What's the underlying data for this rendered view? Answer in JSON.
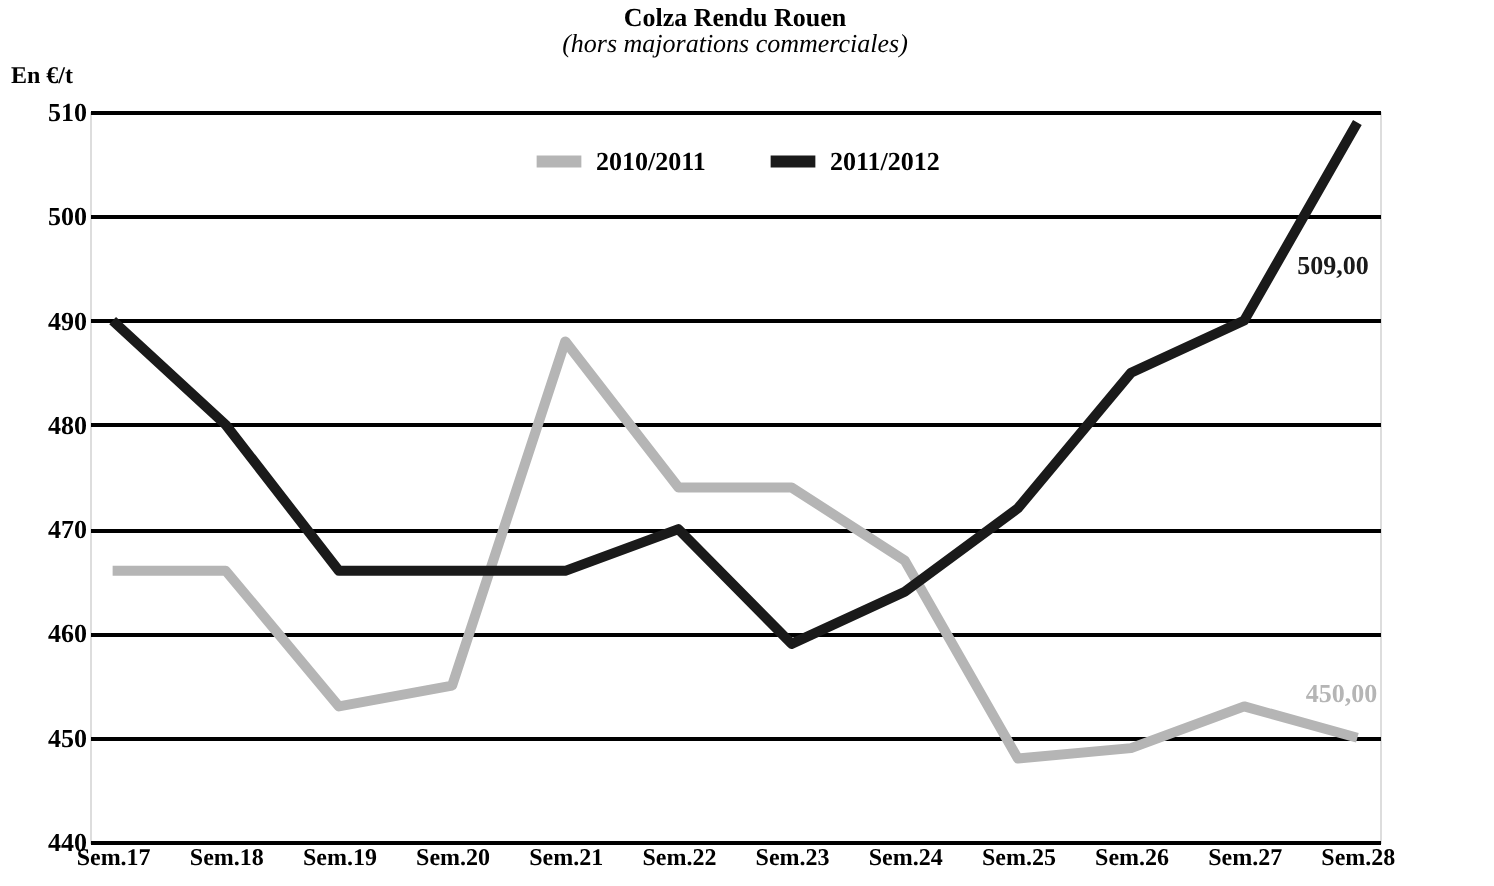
{
  "chart_data": {
    "type": "line",
    "title": "Colza Rendu Rouen",
    "subtitle": "(hors majorations commerciales)",
    "ylabel": "En €/t",
    "categories": [
      "Sem.17",
      "Sem.18",
      "Sem.19",
      "Sem.20",
      "Sem.21",
      "Sem.22",
      "Sem.23",
      "Sem.24",
      "Sem.25",
      "Sem.26",
      "Sem.27",
      "Sem.28"
    ],
    "series": [
      {
        "name": "2010/2011",
        "color": "#b5b5b5",
        "values": [
          466,
          466,
          453,
          455,
          488,
          474,
          474,
          467,
          448,
          449,
          453,
          450
        ]
      },
      {
        "name": "2011/2012",
        "color": "#1a1a1a",
        "values": [
          490,
          480,
          466,
          466,
          466,
          470,
          459,
          464,
          472,
          485,
          490,
          509
        ]
      }
    ],
    "ylim": [
      440,
      510
    ],
    "yticks": [
      440,
      450,
      460,
      470,
      480,
      490,
      500,
      510
    ],
    "grid": "y",
    "legend": "top",
    "marker": "none",
    "line_style": "solid",
    "annotations": [
      "509,00",
      "450,00"
    ]
  }
}
